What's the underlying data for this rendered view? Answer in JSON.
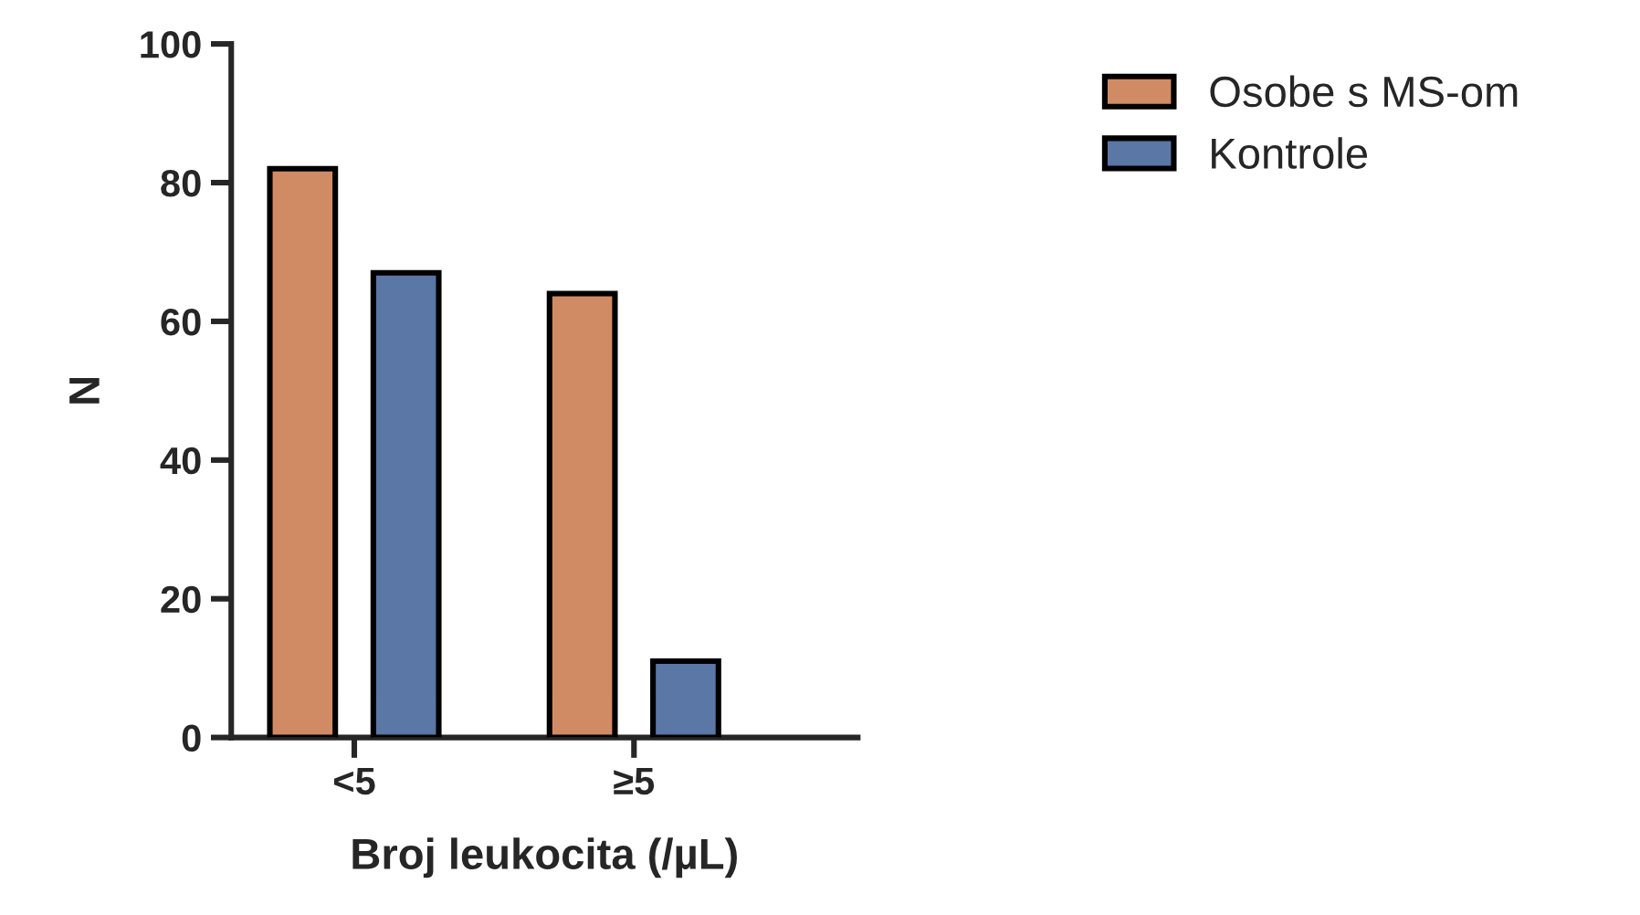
{
  "chart_data": {
    "type": "bar",
    "xlabel": "Broj leukocita (/µL)",
    "ylabel": "N",
    "categories": [
      "<5",
      "≥5"
    ],
    "series": [
      {
        "name": "Osobe s MS-om",
        "color": "#d08b65",
        "values": [
          82,
          64
        ]
      },
      {
        "name": "Kontrole",
        "color": "#5a77a5",
        "values": [
          67,
          11
        ]
      }
    ],
    "ylim": [
      0,
      100
    ],
    "yticks": [
      0,
      20,
      40,
      60,
      80,
      100
    ],
    "grid": false,
    "legend": "top right"
  }
}
